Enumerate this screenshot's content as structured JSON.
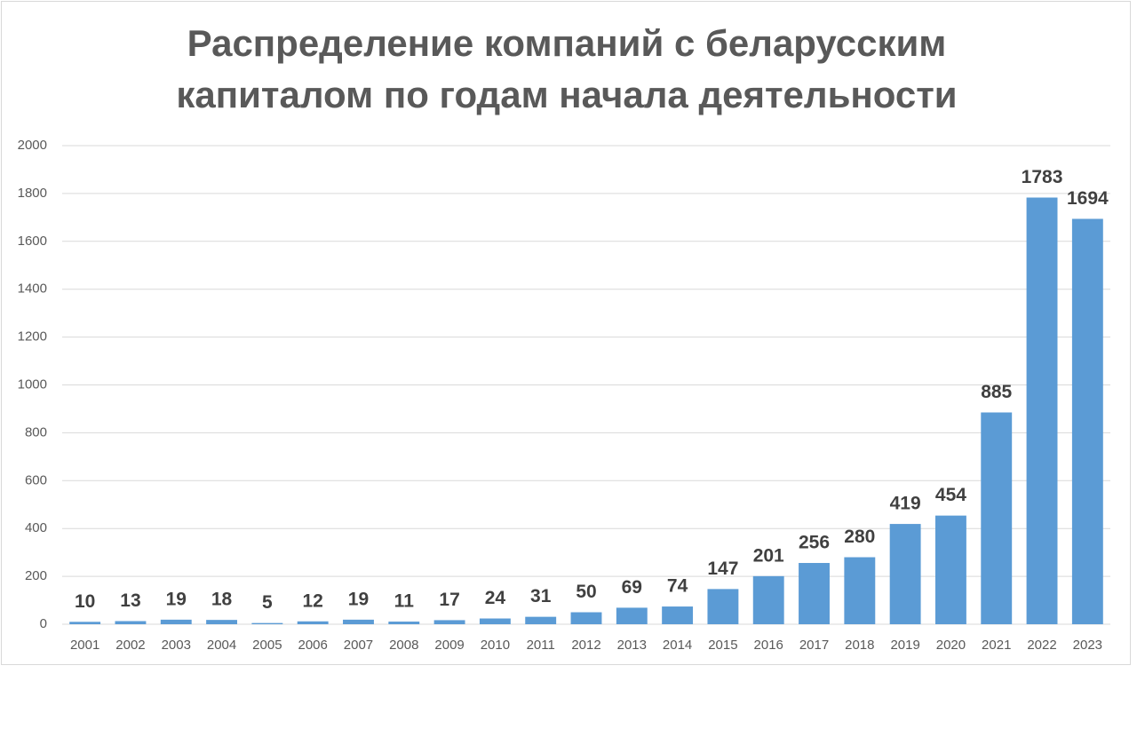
{
  "chart_data": {
    "type": "bar",
    "title": [
      "Распределение компаний с беларусским",
      "капиталом по годам начала деятельности"
    ],
    "categories": [
      "2001",
      "2002",
      "2003",
      "2004",
      "2005",
      "2006",
      "2007",
      "2008",
      "2009",
      "2010",
      "2011",
      "2012",
      "2013",
      "2014",
      "2015",
      "2016",
      "2017",
      "2018",
      "2019",
      "2020",
      "2021",
      "2022",
      "2023"
    ],
    "values": [
      10,
      13,
      19,
      18,
      5,
      12,
      19,
      11,
      17,
      24,
      31,
      50,
      69,
      74,
      147,
      201,
      256,
      280,
      419,
      454,
      885,
      1783,
      1694
    ],
    "color": "#5b9bd5",
    "ylim": [
      0,
      2000
    ],
    "yticks": [
      0,
      200,
      400,
      600,
      800,
      1000,
      1200,
      1400,
      1600,
      1800,
      2000
    ],
    "grid": true
  }
}
